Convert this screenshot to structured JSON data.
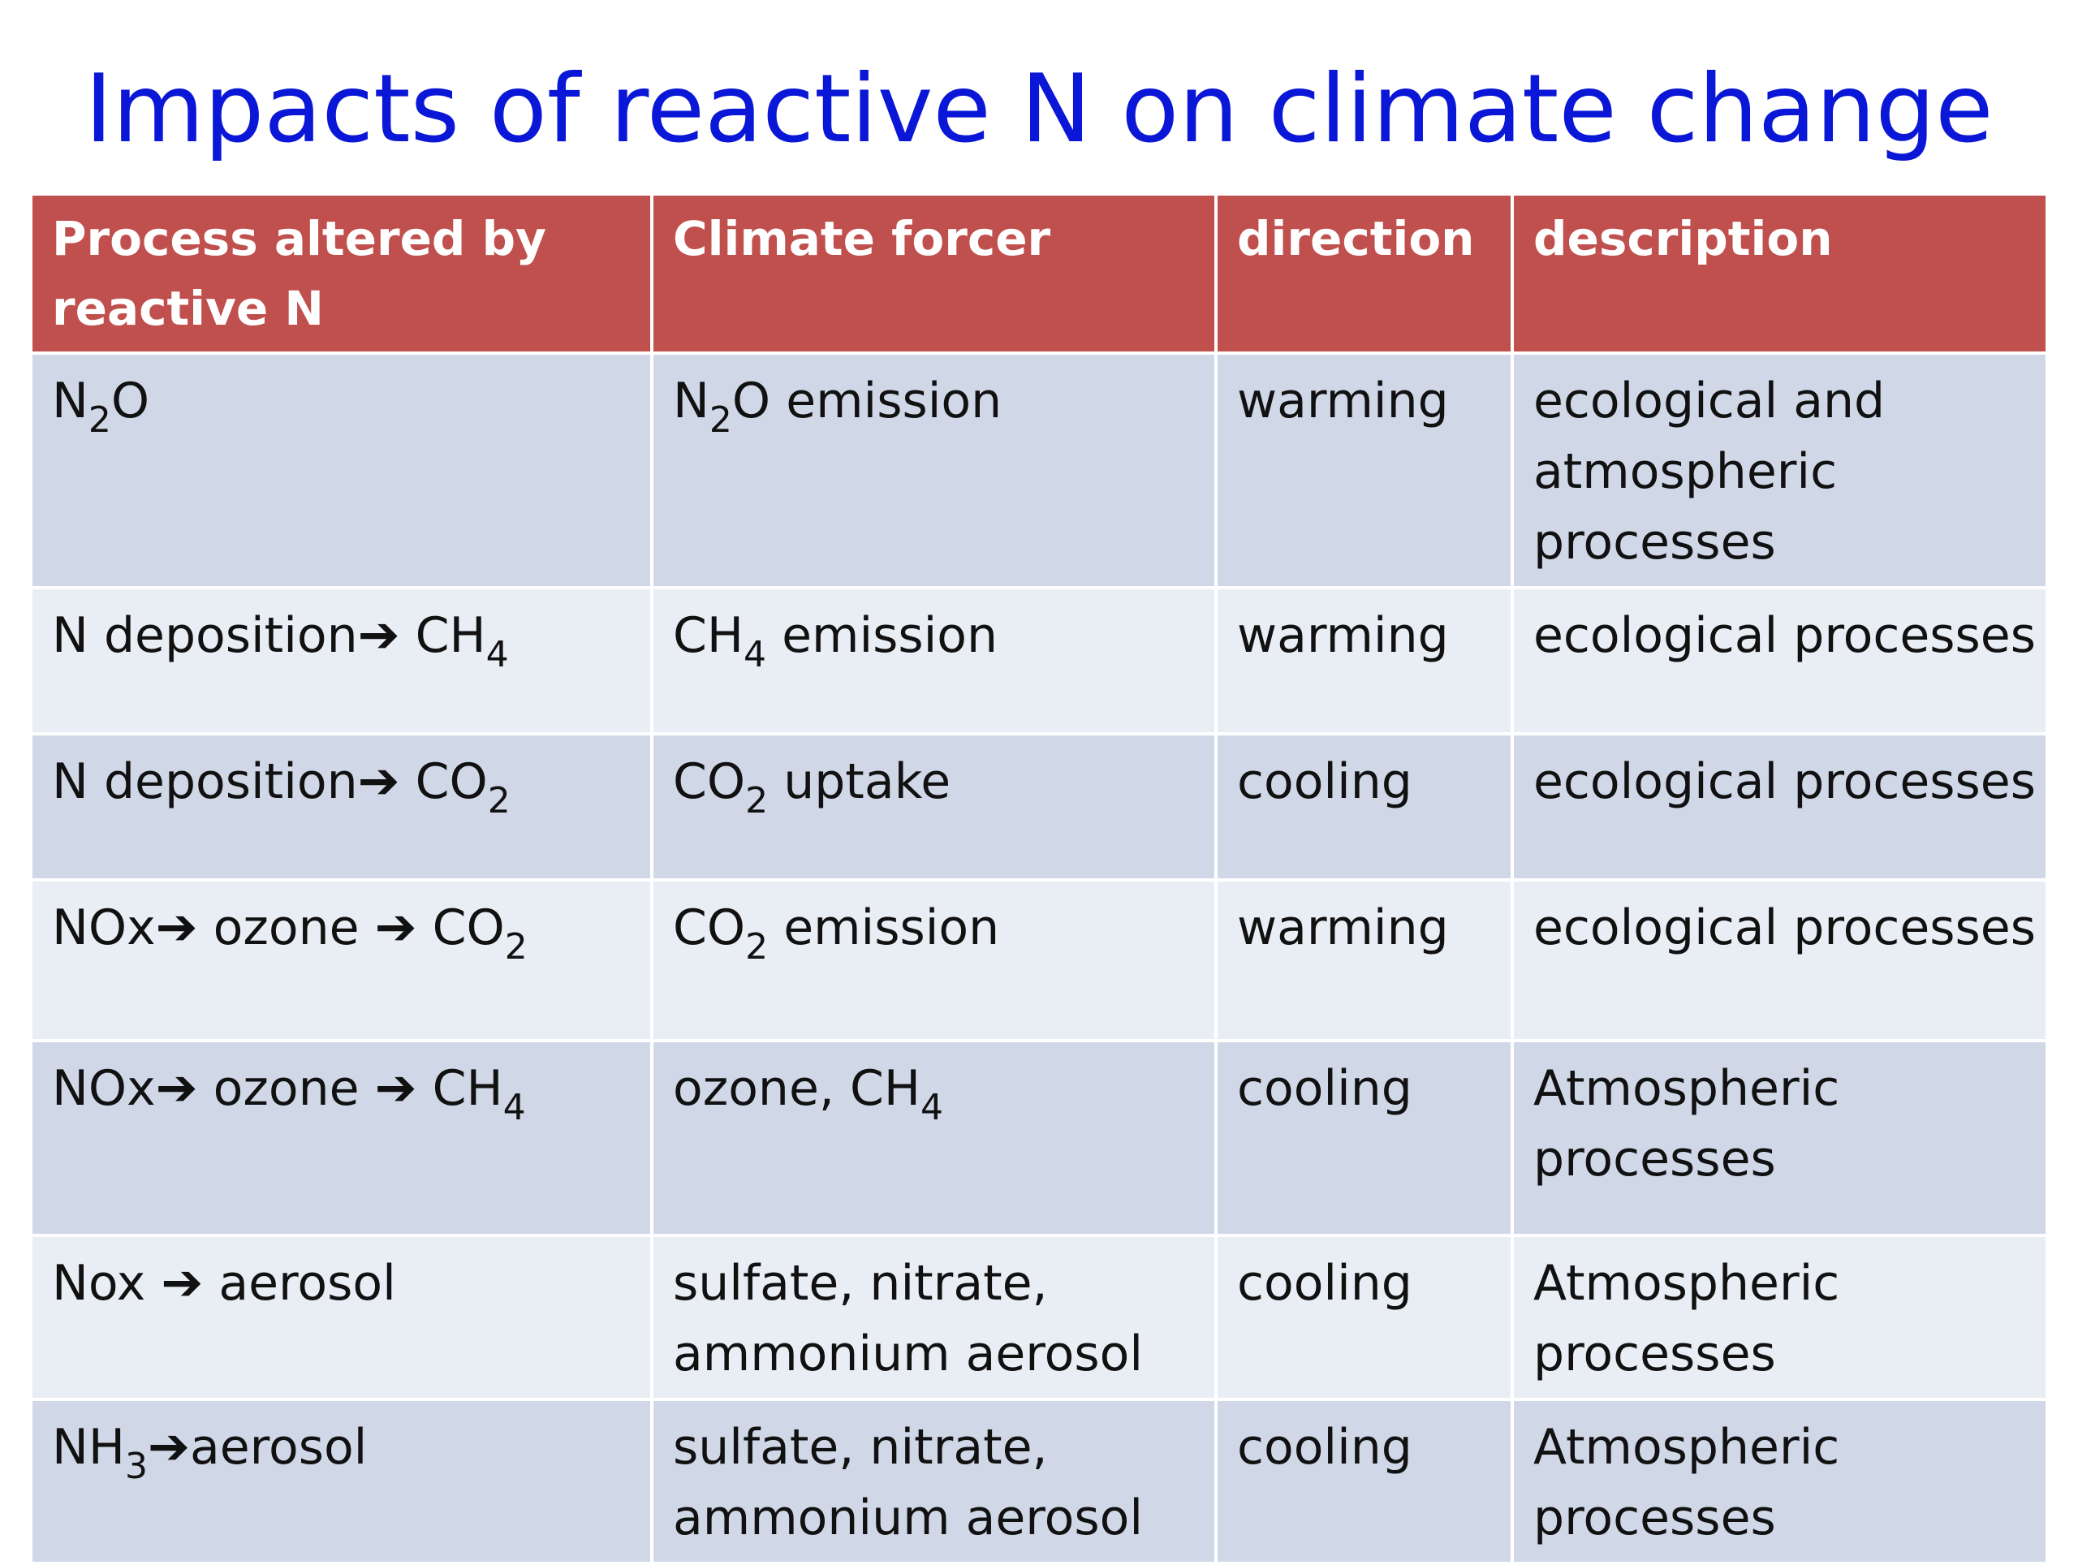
{
  "title": "Impacts of reactive N on climate change",
  "table": {
    "headers": [
      [
        "Process altered by",
        "reactive N"
      ],
      [
        "Climate forcer"
      ],
      [
        "direction"
      ],
      [
        "description"
      ]
    ],
    "rows": [
      {
        "process": [
          "N",
          "2",
          "O"
        ],
        "forcer": [
          "N",
          "2",
          "O emission"
        ],
        "direction": "warming",
        "description": [
          "ecological and",
          "atmospheric",
          "processes"
        ]
      },
      {
        "process": [
          "N deposition",
          "➔",
          " CH",
          "4"
        ],
        "forcer": [
          "CH",
          "4",
          " emission"
        ],
        "direction": "warming",
        "description": [
          "ecological processes"
        ]
      },
      {
        "process": [
          "N deposition",
          "➔",
          " CO",
          "2"
        ],
        "forcer": [
          "CO",
          "2",
          " uptake"
        ],
        "direction": "cooling",
        "description": [
          "ecological processes"
        ]
      },
      {
        "process": [
          "NOx",
          "➔",
          " ozone ",
          "➔",
          " CO",
          "2"
        ],
        "forcer": [
          "CO",
          "2",
          " emission"
        ],
        "direction": "warming",
        "description": [
          "ecological processes"
        ]
      },
      {
        "process": [
          "NOx",
          "➔",
          " ozone ",
          "➔",
          " CH",
          "4"
        ],
        "forcer": [
          "ozone,  CH",
          "4"
        ],
        "direction": "cooling",
        "description": [
          "Atmospheric",
          "processes"
        ]
      },
      {
        "process": [
          "Nox ",
          "➔",
          " aerosol"
        ],
        "forcer": [
          "sulfate, nitrate,",
          "ammonium aerosol"
        ],
        "direction": "cooling",
        "description": [
          "Atmospheric",
          "processes"
        ]
      },
      {
        "process": [
          "NH",
          "3",
          "➔",
          "aerosol"
        ],
        "forcer": [
          "sulfate, nitrate,",
          "ammonium aerosol"
        ],
        "direction": "cooling",
        "description": [
          "Atmospheric",
          "processes"
        ]
      }
    ]
  }
}
